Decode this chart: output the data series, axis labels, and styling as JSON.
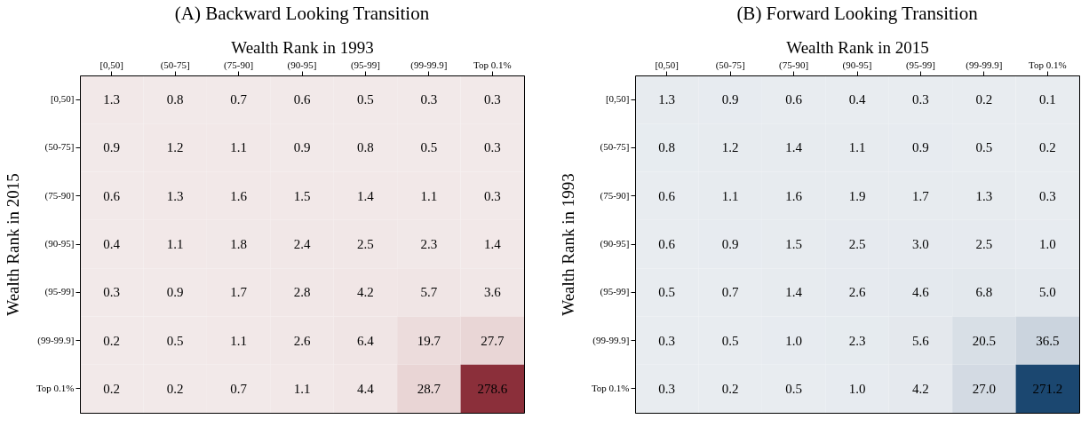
{
  "chart_data": [
    {
      "type": "heatmap",
      "title": "(A) Backward Looking Transition",
      "xlabel": "Wealth Rank in 1993",
      "ylabel": "Wealth Rank in 2015",
      "categories": [
        "[0,50]",
        "(50-75]",
        "(75-90]",
        "(90-95]",
        "(95-99]",
        "(99-99.9]",
        "Top 0.1%"
      ],
      "y_categories": [
        "[0,50]",
        "(50-75]",
        "(75-90]",
        "(90-95]",
        "(95-99]",
        "(99-99.9]",
        "Top 0.1%"
      ],
      "colors": [
        "#f2e9e9",
        "#8b2f3a"
      ],
      "data_labels": true,
      "cells": [
        [
          1.3,
          0.8,
          0.7,
          0.6,
          0.5,
          0.3,
          0.3
        ],
        [
          0.9,
          1.2,
          1.1,
          0.9,
          0.8,
          0.5,
          0.3
        ],
        [
          0.6,
          1.3,
          1.6,
          1.5,
          1.4,
          1.1,
          0.3
        ],
        [
          0.4,
          1.1,
          1.8,
          2.4,
          2.5,
          2.3,
          1.4
        ],
        [
          0.3,
          0.9,
          1.7,
          2.8,
          4.2,
          5.7,
          3.6
        ],
        [
          0.2,
          0.5,
          1.1,
          2.6,
          6.4,
          19.7,
          27.7
        ],
        [
          0.2,
          0.2,
          0.7,
          1.1,
          4.4,
          28.7,
          278.6
        ]
      ]
    },
    {
      "type": "heatmap",
      "title": "(B) Forward Looking Transition",
      "xlabel": "Wealth Rank in 2015",
      "ylabel": "Wealth Rank in 1993",
      "categories": [
        "[0,50]",
        "(50-75]",
        "(75-90]",
        "(90-95]",
        "(95-99]",
        "(99-99.9]",
        "Top 0.1%"
      ],
      "y_categories": [
        "[0,50]",
        "(50-75]",
        "(75-90]",
        "(90-95]",
        "(95-99]",
        "(99-99.9]",
        "Top 0.1%"
      ],
      "colors": [
        "#e8ecf0",
        "#1b4770"
      ],
      "data_labels": true,
      "cells": [
        [
          1.3,
          0.9,
          0.6,
          0.4,
          0.3,
          0.2,
          0.1
        ],
        [
          0.8,
          1.2,
          1.4,
          1.1,
          0.9,
          0.5,
          0.2
        ],
        [
          0.6,
          1.1,
          1.6,
          1.9,
          1.7,
          1.3,
          0.3
        ],
        [
          0.6,
          0.9,
          1.5,
          2.5,
          3.0,
          2.5,
          1.0
        ],
        [
          0.5,
          0.7,
          1.4,
          2.6,
          4.6,
          6.8,
          5.0
        ],
        [
          0.3,
          0.5,
          1.0,
          2.3,
          5.6,
          20.5,
          36.5
        ],
        [
          0.3,
          0.2,
          0.5,
          1.0,
          4.2,
          27.0,
          271.2
        ]
      ],
      "cell_labels": [
        [
          "1.3",
          "0.9",
          "0.6",
          "0.4",
          "0.3",
          "0.2",
          "0.1"
        ],
        [
          "0.8",
          "1.2",
          "1.4",
          "1.1",
          "0.9",
          "0.5",
          "0.2"
        ],
        [
          "0.6",
          "1.1",
          "1.6",
          "1.9",
          "1.7",
          "1.3",
          "0.3"
        ],
        [
          "0.6",
          "0.9",
          "1.5",
          "2.5",
          "3.0",
          "2.5",
          "1.0"
        ],
        [
          "0.5",
          "0.7",
          "1.4",
          "2.6",
          "4.6",
          "6.8",
          "5.0"
        ],
        [
          "0.3",
          "0.5",
          "1.0",
          "2.3",
          "5.6",
          "20.5",
          "36.5"
        ],
        [
          "0.3",
          "0.2",
          "0.5",
          "1.0",
          "4.2",
          "27.0",
          "271.2"
        ]
      ]
    }
  ]
}
